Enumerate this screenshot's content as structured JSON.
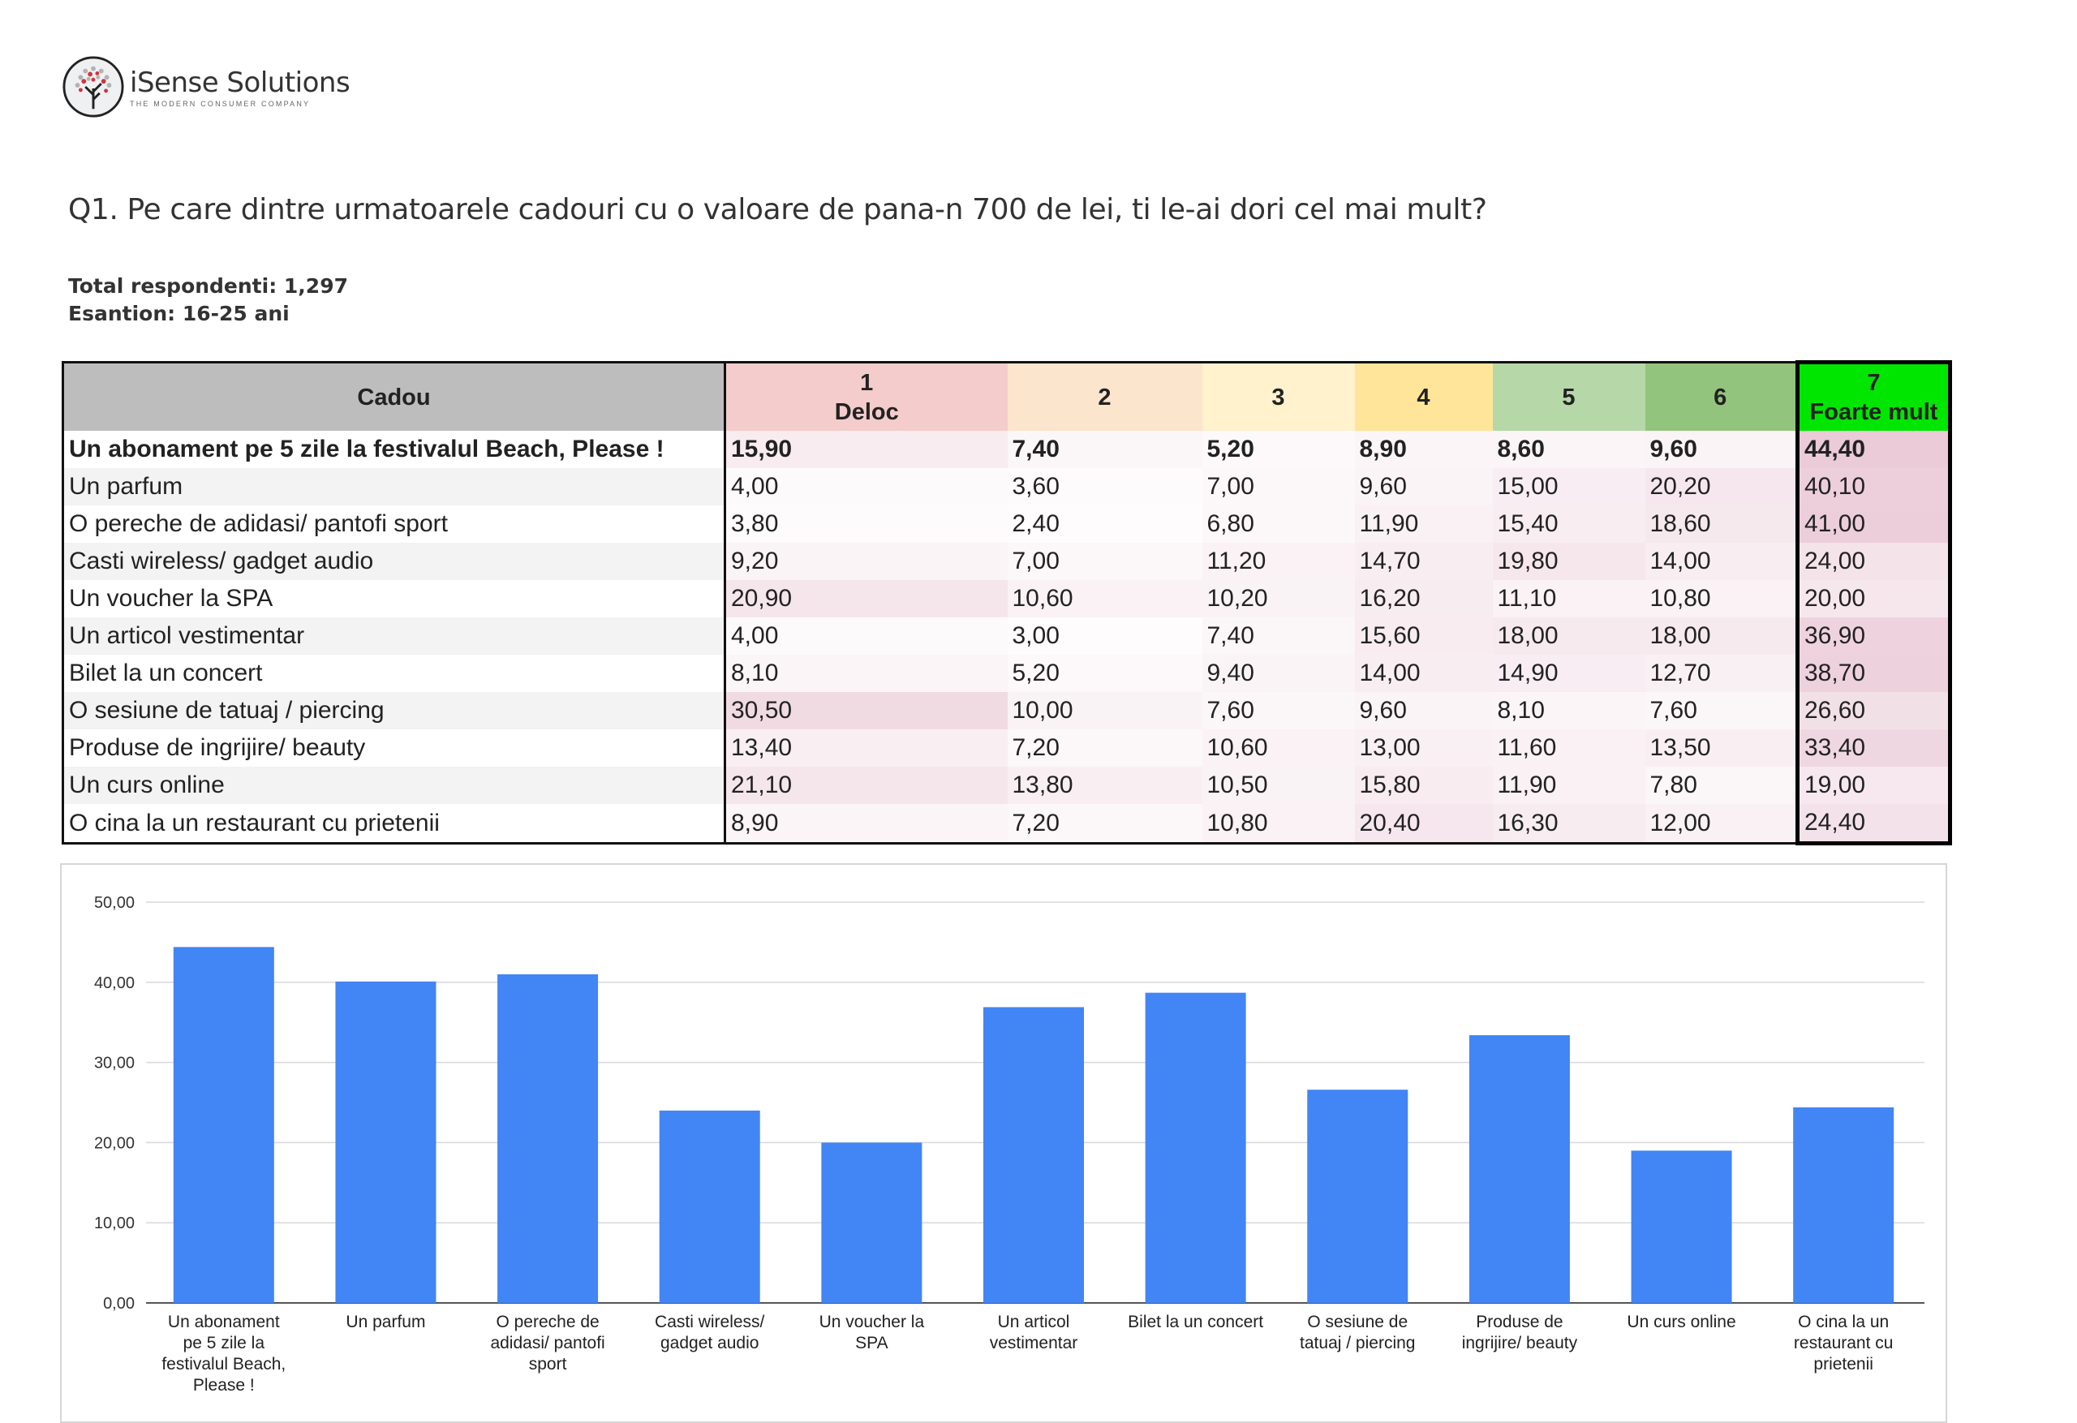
{
  "logo": {
    "name": "iSense Solutions",
    "tagline": "THE MODERN CONSUMER COMPANY"
  },
  "question": "Q1. Pe care dintre urmatoarele cadouri cu o valoare de pana-n 700 de lei, ti le-ai dori cel mai mult?",
  "meta": {
    "total": "Total respondenti: 1,297",
    "sample": "Esantion: 16-25 ani"
  },
  "table": {
    "header": {
      "label": "Cadou",
      "c1_num": "1",
      "c1_text": "Deloc",
      "c2": "2",
      "c3": "3",
      "c4": "4",
      "c5": "5",
      "c6": "6",
      "c7_num": "7",
      "c7_text": "Foarte mult"
    },
    "header_colors": [
      "#bdbdbd",
      "#f4cccc",
      "#fce5cd",
      "#fff2cc",
      "#ffe599",
      "#b6d7a8",
      "#93c47d",
      "#00e600"
    ],
    "rows": [
      {
        "label": "Un abonament pe 5 zile la festivalul Beach, Please !",
        "v": [
          "15,90",
          "7,40",
          "5,20",
          "8,90",
          "8,60",
          "9,60",
          "44,40"
        ]
      },
      {
        "label": "Un parfum",
        "v": [
          "4,00",
          "3,60",
          "7,00",
          "9,60",
          "15,00",
          "20,20",
          "40,10"
        ]
      },
      {
        "label": "O pereche de adidasi/ pantofi sport",
        "v": [
          "3,80",
          "2,40",
          "6,80",
          "11,90",
          "15,40",
          "18,60",
          "41,00"
        ]
      },
      {
        "label": "Casti wireless/ gadget audio",
        "v": [
          "9,20",
          "7,00",
          "11,20",
          "14,70",
          "19,80",
          "14,00",
          "24,00"
        ]
      },
      {
        "label": "Un voucher la SPA",
        "v": [
          "20,90",
          "10,60",
          "10,20",
          "16,20",
          "11,10",
          "10,80",
          "20,00"
        ]
      },
      {
        "label": "Un articol vestimentar",
        "v": [
          "4,00",
          "3,00",
          "7,40",
          "15,60",
          "18,00",
          "18,00",
          "36,90"
        ]
      },
      {
        "label": "Bilet la un concert",
        "v": [
          "8,10",
          "5,20",
          "9,40",
          "14,00",
          "14,90",
          "12,70",
          "38,70"
        ]
      },
      {
        "label": "O sesiune de tatuaj / piercing",
        "v": [
          "30,50",
          "10,00",
          "7,60",
          "9,60",
          "8,10",
          "7,60",
          "26,60"
        ]
      },
      {
        "label": "Produse de ingrijire/ beauty",
        "v": [
          "13,40",
          "7,20",
          "10,60",
          "13,00",
          "11,60",
          "13,50",
          "33,40"
        ]
      },
      {
        "label": "Un curs online",
        "v": [
          "21,10",
          "13,80",
          "10,50",
          "15,80",
          "11,90",
          "7,80",
          "19,00"
        ]
      },
      {
        "label": "O cina la un restaurant cu prietenii",
        "v": [
          "8,90",
          "7,20",
          "10,80",
          "20,40",
          "16,30",
          "12,00",
          "24,40"
        ]
      }
    ]
  },
  "chart_data": {
    "type": "bar",
    "categories": [
      [
        "Un abonament",
        "pe 5 zile la",
        "festivalul Beach,",
        "Please !"
      ],
      [
        "Un parfum"
      ],
      [
        "O pereche de",
        "adidasi/ pantofi",
        "sport"
      ],
      [
        "Casti wireless/",
        "gadget audio"
      ],
      [
        "Un voucher la",
        "SPA"
      ],
      [
        "Un articol",
        "vestimentar"
      ],
      [
        "Bilet la un concert"
      ],
      [
        "O sesiune de",
        "tatuaj / piercing"
      ],
      [
        "Produse de",
        "ingrijire/ beauty"
      ],
      [
        "Un curs online"
      ],
      [
        "O cina la un",
        "restaurant cu",
        "prietenii"
      ]
    ],
    "values": [
      44.4,
      40.1,
      41.0,
      24.0,
      20.0,
      36.9,
      38.7,
      26.6,
      33.4,
      19.0,
      24.4
    ],
    "yticks": [
      "0,00",
      "10,00",
      "20,00",
      "30,00",
      "40,00",
      "50,00"
    ],
    "ylim": [
      0,
      50
    ],
    "grid": true,
    "bar_color": "#4285f4"
  }
}
